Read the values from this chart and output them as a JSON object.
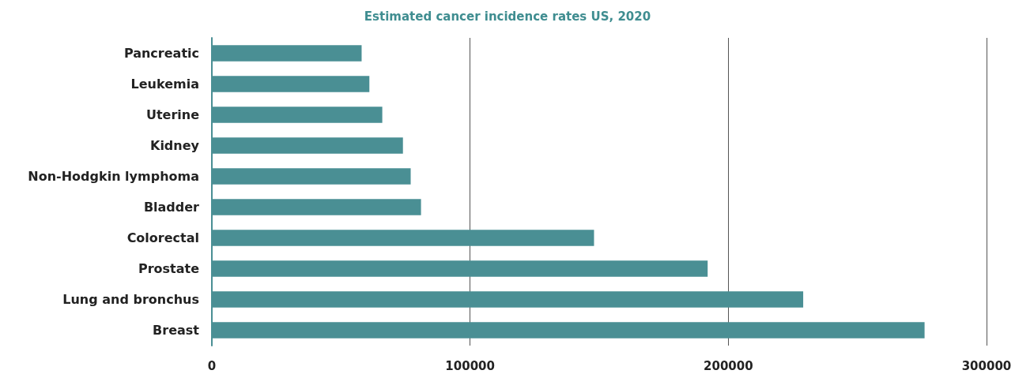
{
  "chart_data": {
    "type": "bar",
    "orientation": "horizontal",
    "title": "Estimated cancer incidence rates US, 2020",
    "categories": [
      "Pancreatic",
      "Leukemia",
      "Uterine",
      "Kidney",
      "Non-Hodgkin lymphoma",
      "Bladder",
      "Colorectal",
      "Prostate",
      "Lung and bronchus",
      "Breast"
    ],
    "values": [
      58000,
      61000,
      66000,
      74000,
      77000,
      81000,
      148000,
      192000,
      229000,
      276000
    ],
    "color": "#4a8f94",
    "xlim": [
      0,
      300000
    ],
    "xticks": [
      0,
      100000,
      200000,
      300000
    ],
    "grid": "x"
  }
}
